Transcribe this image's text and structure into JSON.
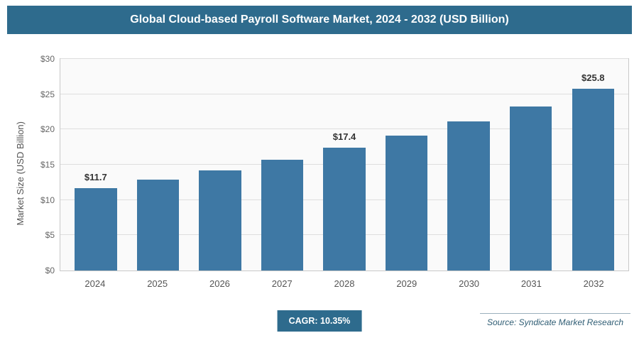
{
  "header": {
    "title": "Global Cloud-based Payroll Software Market, 2024 - 2032 (USD Billion)"
  },
  "chart_data": {
    "type": "bar",
    "title": "Global Cloud-based Payroll Software Market, 2024 - 2032 (USD Billion)",
    "categories": [
      "2024",
      "2025",
      "2026",
      "2027",
      "2028",
      "2029",
      "2030",
      "2031",
      "2032"
    ],
    "values": [
      11.7,
      12.9,
      14.2,
      15.7,
      17.4,
      19.1,
      21.1,
      23.3,
      25.8
    ],
    "data_labels": [
      "$11.7",
      "",
      "",
      "",
      "$17.4",
      "",
      "",
      "",
      "$25.8"
    ],
    "xlabel": "",
    "ylabel": "Market Size (USD Billion)",
    "ylim": [
      0,
      30
    ],
    "ytick_step": 5,
    "ytick_labels": [
      "$0",
      "$5",
      "$10",
      "$15",
      "$20",
      "$25",
      "$30"
    ],
    "grid": true,
    "legend": "none",
    "bar_color": "#3e78a4"
  },
  "footer": {
    "cagr_label": "CAGR: 10.35%",
    "source": "Source: Syndicate Market Research"
  },
  "colors": {
    "accent": "#2e6b8d",
    "plot_background": "#fafafa",
    "gridline": "#dedede"
  }
}
